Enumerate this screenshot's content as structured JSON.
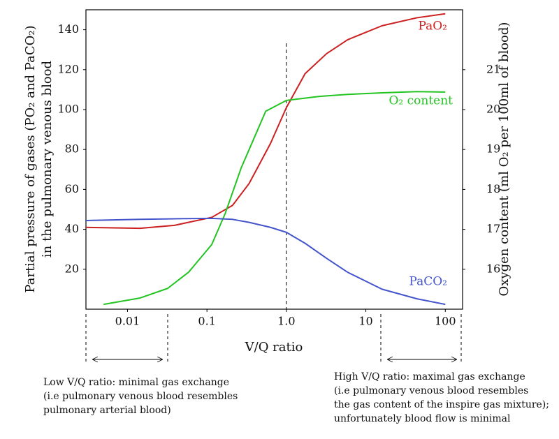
{
  "chart_data": {
    "type": "line",
    "xlabel": "V/Q ratio",
    "ylabel": [
      "Partial pressure of gases (PO₂ and PaCO₂)",
      "in the pulmonary venous blood"
    ],
    "y2label": "Oxygen content (ml O₂ per 100ml of blood)",
    "xscale": "log",
    "xlim": [
      0.003,
      165
    ],
    "xticks": [
      0.01,
      0.1,
      {
        "value": 1,
        "label": "1.0"
      },
      10,
      100
    ],
    "ylim": [
      0,
      150
    ],
    "yticks": [
      20,
      40,
      60,
      80,
      100,
      120,
      140
    ],
    "y2lim": [
      15,
      22.5
    ],
    "y2ticks": [
      16,
      17,
      18,
      19,
      20,
      21
    ],
    "vline": 1,
    "series": [
      {
        "name": "PaO₂",
        "color": "#cc2020",
        "x": [
          0.003,
          0.0144,
          0.039,
          0.115,
          0.21,
          0.34,
          0.63,
          1,
          1.72,
          3.2,
          5.9,
          16,
          44,
          100
        ],
        "values": [
          41,
          40.5,
          42,
          46,
          52,
          63,
          83,
          101,
          118,
          128,
          135,
          142,
          146,
          148
        ]
      },
      {
        "name": "O₂ content",
        "color": "#22c422",
        "axis": "y2",
        "x": [
          0.005,
          0.0144,
          0.032,
          0.059,
          0.115,
          0.17,
          0.27,
          0.34,
          0.55,
          1,
          2.6,
          5.9,
          16,
          44,
          100
        ],
        "values": [
          15.12,
          15.28,
          15.52,
          15.93,
          16.62,
          17.4,
          18.54,
          19.0,
          19.96,
          20.23,
          20.33,
          20.38,
          20.42,
          20.45,
          20.44
        ]
      },
      {
        "name": "PaCO₂",
        "color": "#4455cc",
        "x": [
          0.003,
          0.0144,
          0.039,
          0.115,
          0.21,
          0.34,
          0.63,
          1,
          1.72,
          3.2,
          5.9,
          16,
          44,
          100
        ],
        "values": [
          44.4,
          45,
          45.3,
          45.5,
          45,
          43.5,
          41,
          38.5,
          33,
          25.5,
          18.5,
          10,
          5.2,
          2.4
        ]
      }
    ],
    "annotations": [
      [
        "Low V/Q ratio: minimal gas exchange",
        "(i.e pulmonary venous blood resembles",
        "pulmonary arterial blood)"
      ],
      [
        "High V/Q ratio: maximal gas exchange",
        "(i.e pulmonary venous blood resembles",
        "the gas content of the inspire gas mixture);",
        "unfortunately blood flow is minimal"
      ]
    ]
  }
}
